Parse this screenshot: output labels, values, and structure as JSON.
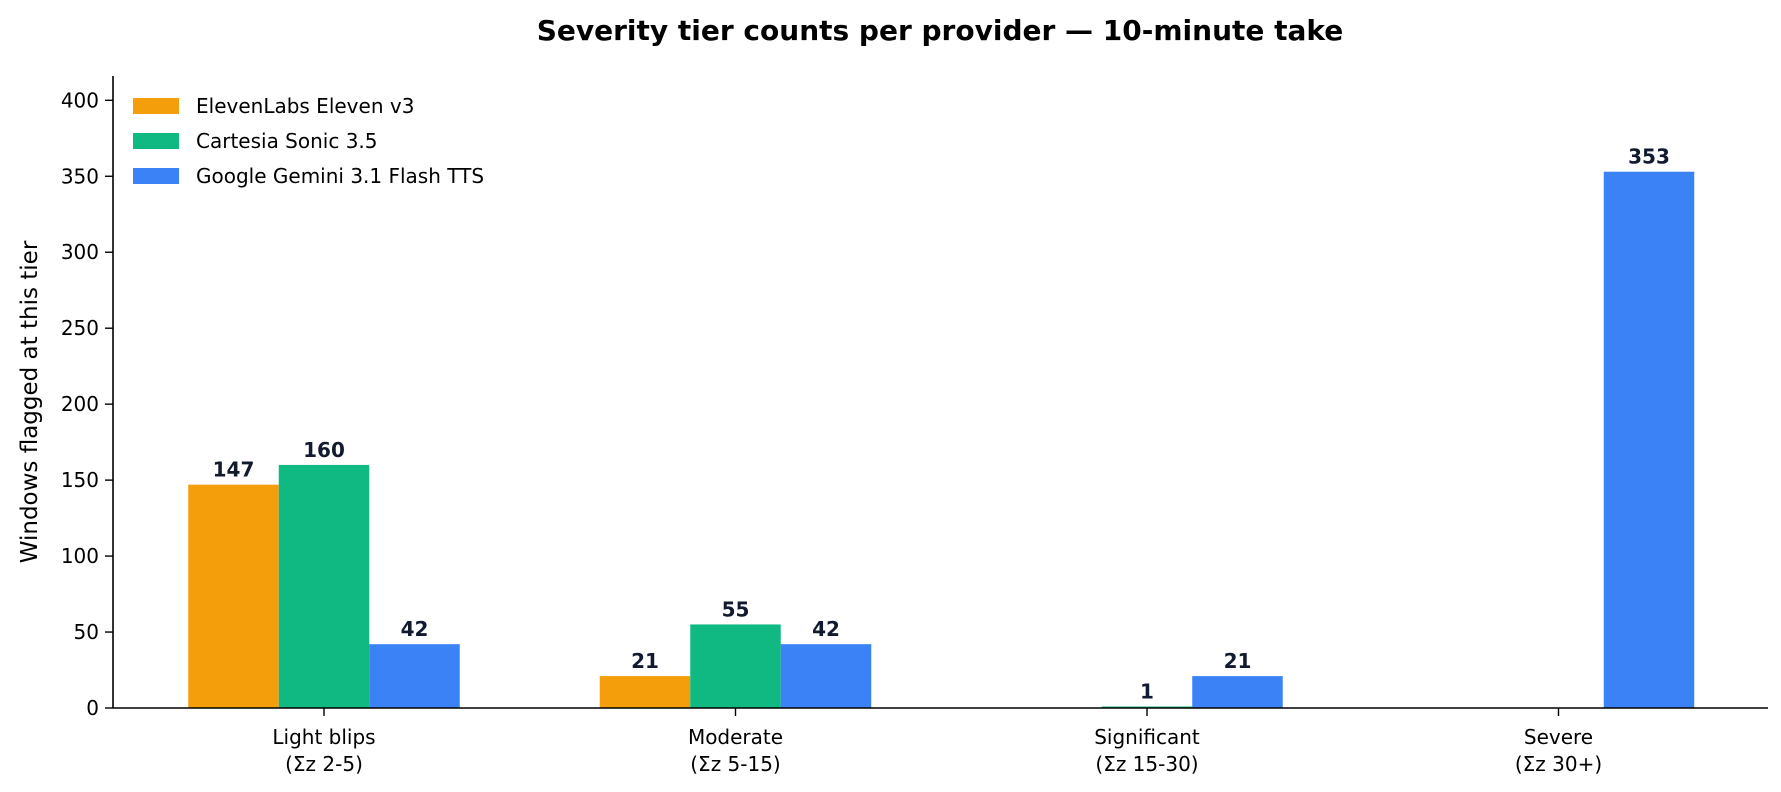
{
  "chart_data": {
    "type": "bar",
    "title": "Severity tier counts per provider — 10-minute take",
    "xlabel": "",
    "ylabel": "Windows flagged at this tier",
    "ylim": [
      0,
      416
    ],
    "yticks": [
      0,
      50,
      100,
      150,
      200,
      250,
      300,
      350,
      400
    ],
    "grid": false,
    "legend_position": "top-left",
    "categories": [
      [
        "Light blips",
        "(Σz 2-5)"
      ],
      [
        "Moderate",
        "(Σz 5-15)"
      ],
      [
        "Significant",
        "(Σz 15-30)"
      ],
      [
        "Severe",
        "(Σz 30+)"
      ]
    ],
    "series": [
      {
        "name": "ElevenLabs Eleven v3",
        "color": "#f59e0b",
        "values": [
          147,
          21,
          0,
          0
        ]
      },
      {
        "name": "Cartesia Sonic 3.5",
        "color": "#10b981",
        "values": [
          160,
          55,
          1,
          0
        ]
      },
      {
        "name": "Google Gemini 3.1 Flash TTS",
        "color": "#3b82f6",
        "values": [
          42,
          42,
          21,
          353
        ]
      }
    ]
  }
}
